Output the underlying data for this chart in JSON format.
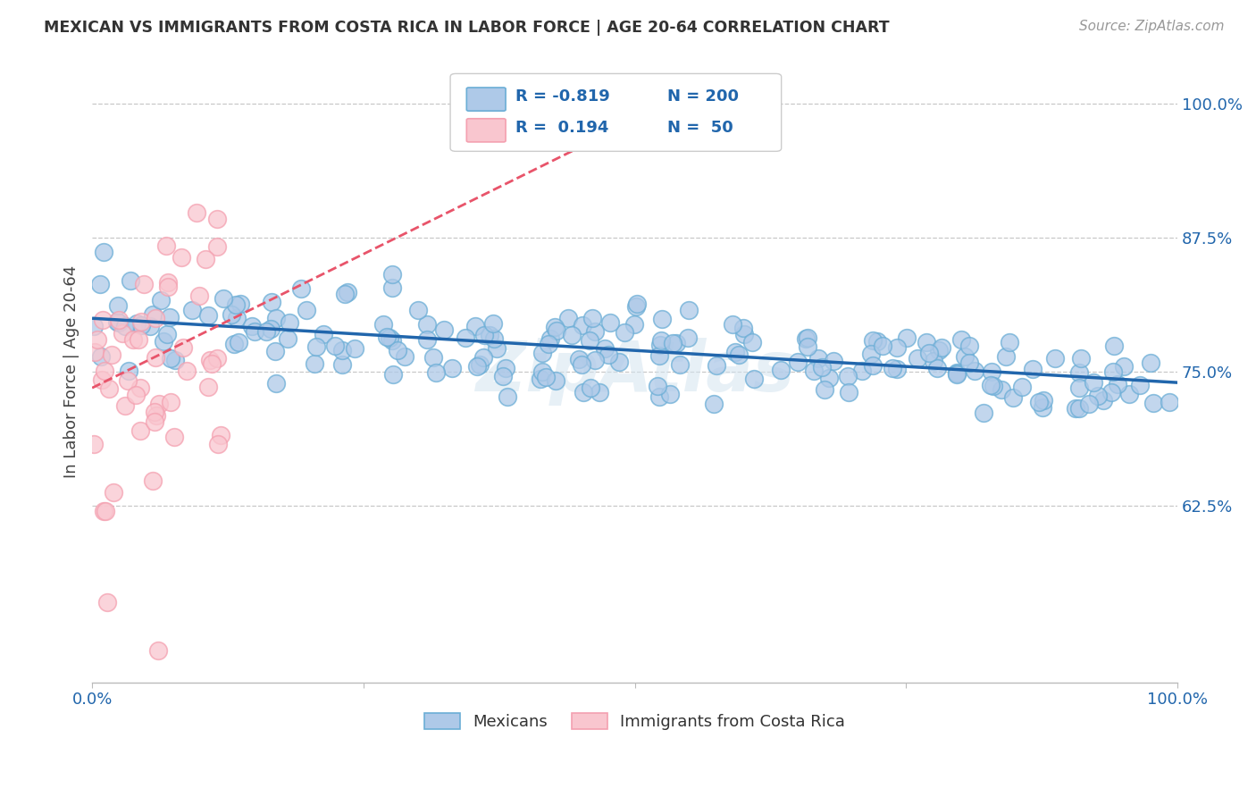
{
  "title": "MEXICAN VS IMMIGRANTS FROM COSTA RICA IN LABOR FORCE | AGE 20-64 CORRELATION CHART",
  "source": "Source: ZipAtlas.com",
  "ylabel": "In Labor Force | Age 20-64",
  "yticks": [
    0.625,
    0.75,
    0.875,
    1.0
  ],
  "ytick_labels": [
    "62.5%",
    "75.0%",
    "87.5%",
    "100.0%"
  ],
  "xlim": [
    0.0,
    1.0
  ],
  "ylim": [
    0.46,
    1.04
  ],
  "blue_color": "#6baed6",
  "blue_fill": "#aec9e8",
  "pink_color": "#f4a0b0",
  "pink_fill": "#f9c6cf",
  "trend_blue_color": "#2166ac",
  "trend_pink_color": "#e8546a",
  "legend_R_blue": "-0.819",
  "legend_N_blue": "200",
  "legend_R_pink": "0.194",
  "legend_N_pink": "50",
  "watermark": "ZipAtlas",
  "legend_label_blue": "Mexicans",
  "legend_label_pink": "Immigrants from Costa Rica",
  "blue_intercept": 0.8,
  "blue_slope": -0.06,
  "pink_intercept": 0.735,
  "pink_slope": 0.5,
  "blue_noise": 0.022,
  "pink_noise": 0.075
}
